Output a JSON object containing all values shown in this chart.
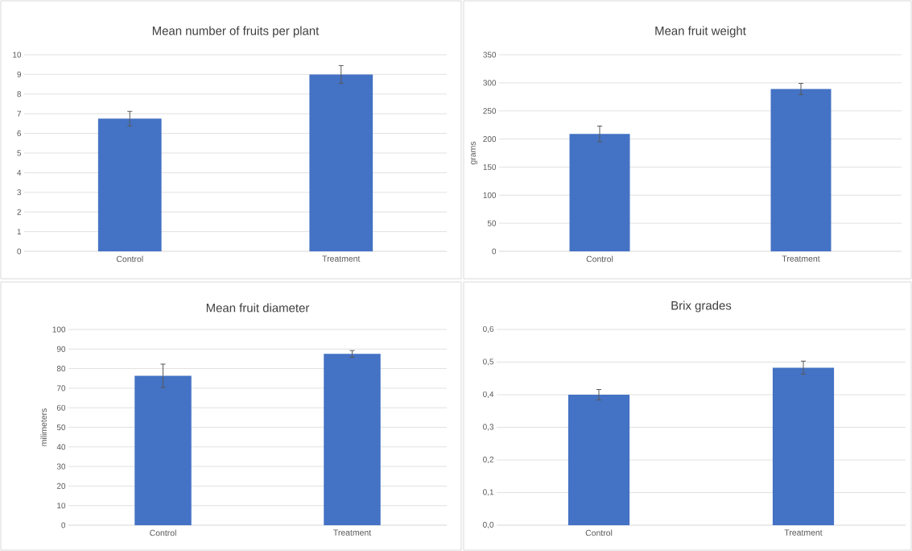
{
  "chart_data": [
    {
      "type": "bar",
      "title": "Mean number of fruits per plant",
      "categories": [
        "Control",
        "Treatment"
      ],
      "values": [
        6.75,
        9.0
      ],
      "errors": [
        0.37,
        0.45
      ],
      "color": "#4472c4",
      "ylim": [
        0,
        10
      ],
      "yticks": [
        0,
        1,
        2,
        3,
        4,
        5,
        6,
        7,
        8,
        9,
        10
      ],
      "grid": "y"
    },
    {
      "type": "bar",
      "title": "Mean fruit weight",
      "ylabel": "grams",
      "categories": [
        "Control",
        "Treatment"
      ],
      "values": [
        209,
        289
      ],
      "errors": [
        14,
        10
      ],
      "color": "#4472c4",
      "ylim": [
        0,
        350
      ],
      "yticks": [
        0,
        50,
        100,
        150,
        200,
        250,
        300,
        350
      ],
      "grid": "y"
    },
    {
      "type": "bar",
      "title": "Mean fruit diameter",
      "ylabel": "milimeters",
      "categories": [
        "Control",
        "Treatment"
      ],
      "values": [
        76.3,
        87.5
      ],
      "errors": [
        6,
        1.7
      ],
      "color": "#4472c4",
      "ylim": [
        0,
        100
      ],
      "yticks": [
        0,
        10,
        20,
        30,
        40,
        50,
        60,
        70,
        80,
        90,
        100
      ],
      "grid": "y"
    },
    {
      "type": "bar",
      "title": "Brix grades",
      "categories": [
        "Control",
        "Treatment"
      ],
      "values": [
        0.4,
        0.483
      ],
      "errors": [
        0.016,
        0.02
      ],
      "color": "#4472c4",
      "ylim": [
        0,
        0.6
      ],
      "yticks": [
        {
          "value": 0,
          "label": "0,0"
        },
        {
          "value": 0.1,
          "label": "0,1"
        },
        {
          "value": 0.2,
          "label": "0,2"
        },
        {
          "value": 0.3,
          "label": "0,3"
        },
        {
          "value": 0.4,
          "label": "0,4"
        },
        {
          "value": 0.5,
          "label": "0,5"
        },
        {
          "value": 0.6,
          "label": "0,6"
        }
      ],
      "grid": "y"
    }
  ]
}
